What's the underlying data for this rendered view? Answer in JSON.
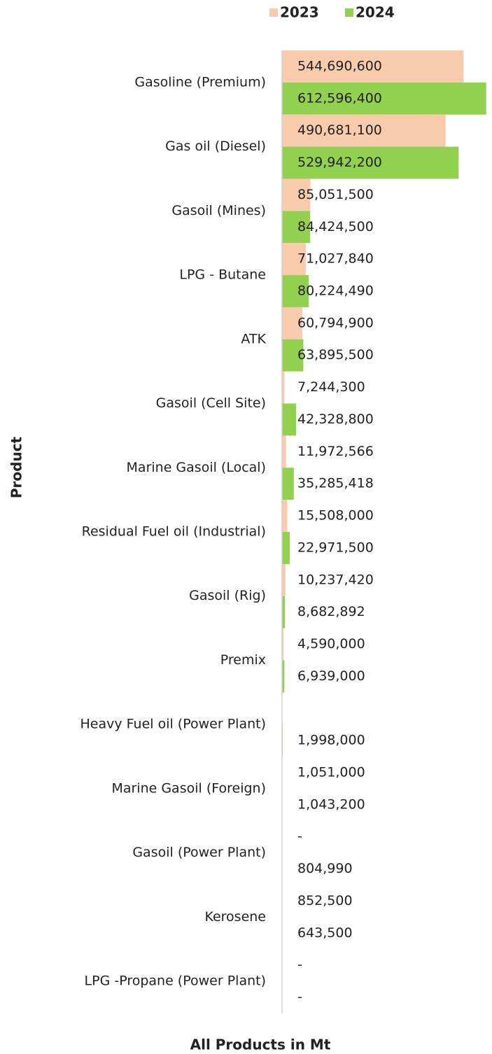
{
  "chart_data": {
    "type": "bar",
    "orientation": "horizontal",
    "x_label": "All Products in Mt",
    "y_label": "Product",
    "legend": "top",
    "xlim": [
      0,
      630000000
    ],
    "categories": [
      "Gasoline (Premium)",
      "Gas oil (Diesel)",
      "Gasoil (Mines)",
      "LPG - Butane",
      "ATK",
      "Gasoil (Cell Site)",
      "Marine Gasoil (Local)",
      "Residual Fuel oil (Industrial)",
      "Gasoil (Rig)",
      "Premix",
      "Heavy Fuel oil (Power Plant)",
      "Marine Gasoil (Foreign)",
      "Gasoil (Power Plant)",
      "Kerosene",
      "LPG -Propane (Power Plant)"
    ],
    "series": [
      {
        "name": "2023",
        "color": "#f8cbad",
        "values": [
          544690600,
          490681100,
          85051500,
          71027840,
          60794900,
          7244300,
          11972566,
          15508000,
          10237420,
          4590000,
          null,
          1051000,
          0,
          852500,
          0
        ],
        "value_labels": [
          "544,690,600",
          "490,681,100",
          "85,051,500",
          "71,027,840",
          "60,794,900",
          "7,244,300",
          "11,972,566",
          "15,508,000",
          "10,237,420",
          "4,590,000",
          null,
          "1,051,000",
          "-",
          "852,500",
          "-"
        ]
      },
      {
        "name": "2024",
        "color": "#92d050",
        "values": [
          612596400,
          529942200,
          84424500,
          80224490,
          63895500,
          42328800,
          35285418,
          22971500,
          8682892,
          6939000,
          1998000,
          1043200,
          804990,
          643500,
          0
        ],
        "value_labels": [
          "612,596,400",
          "529,942,200",
          "84,424,500",
          "80,224,490",
          "63,895,500",
          "42,328,800",
          "35,285,418",
          "22,971,500",
          "8,682,892",
          "6,939,000",
          "1,998,000",
          "1,043,200",
          "804,990",
          "643,500",
          "-"
        ]
      }
    ]
  }
}
